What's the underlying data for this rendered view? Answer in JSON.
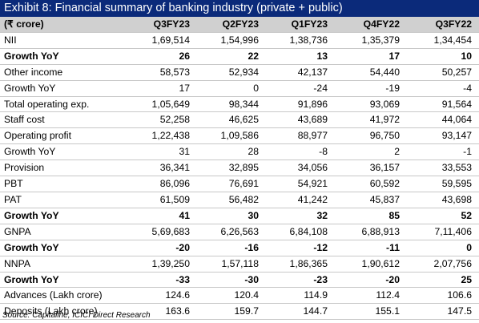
{
  "title": "Exhibit 8: Financial summary of banking industry (private + public)",
  "header": [
    "(₹ crore)",
    "Q3FY23",
    "Q2FY23",
    "Q1FY23",
    "Q4FY22",
    "Q3FY22"
  ],
  "rows": [
    {
      "label": "NII",
      "bold": false,
      "values": [
        "1,69,514",
        "1,54,996",
        "1,38,736",
        "1,35,379",
        "1,34,454"
      ]
    },
    {
      "label": "Growth YoY",
      "bold": true,
      "values": [
        "26",
        "22",
        "13",
        "17",
        "10"
      ]
    },
    {
      "label": "Other income",
      "bold": false,
      "values": [
        "58,573",
        "52,934",
        "42,137",
        "54,440",
        "50,257"
      ]
    },
    {
      "label": "Growth YoY",
      "bold": false,
      "values": [
        "17",
        "0",
        "-24",
        "-19",
        "-4"
      ]
    },
    {
      "label": "Total operating exp.",
      "bold": false,
      "values": [
        "1,05,649",
        "98,344",
        "91,896",
        "93,069",
        "91,564"
      ]
    },
    {
      "label": "Staff cost",
      "bold": false,
      "values": [
        "52,258",
        "46,625",
        "43,689",
        "41,972",
        "44,064"
      ]
    },
    {
      "label": "Operating profit",
      "bold": false,
      "values": [
        "1,22,438",
        "1,09,586",
        "88,977",
        "96,750",
        "93,147"
      ]
    },
    {
      "label": "Growth YoY",
      "bold": false,
      "values": [
        "31",
        "28",
        "-8",
        "2",
        "-1"
      ]
    },
    {
      "label": "Provision",
      "bold": false,
      "values": [
        "36,341",
        "32,895",
        "34,056",
        "36,157",
        "33,553"
      ]
    },
    {
      "label": "PBT",
      "bold": false,
      "values": [
        "86,096",
        "76,691",
        "54,921",
        "60,592",
        "59,595"
      ]
    },
    {
      "label": "PAT",
      "bold": false,
      "values": [
        "61,509",
        "56,482",
        "41,242",
        "45,837",
        "43,698"
      ]
    },
    {
      "label": "Growth YoY",
      "bold": true,
      "values": [
        "41",
        "30",
        "32",
        "85",
        "52"
      ]
    },
    {
      "label": "GNPA",
      "bold": false,
      "values": [
        "5,69,683",
        "6,26,563",
        "6,84,108",
        "6,88,913",
        "7,11,406"
      ]
    },
    {
      "label": "Growth YoY",
      "bold": true,
      "values": [
        "-20",
        "-16",
        "-12",
        "-11",
        "0"
      ]
    },
    {
      "label": "NNPA",
      "bold": false,
      "values": [
        "1,39,250",
        "1,57,118",
        "1,86,365",
        "1,90,612",
        "2,07,756"
      ]
    },
    {
      "label": "Growth YoY",
      "bold": true,
      "values": [
        "-33",
        "-30",
        "-23",
        "-20",
        "25"
      ]
    },
    {
      "label": "Advances (Lakh crore)",
      "bold": false,
      "values": [
        "124.6",
        "120.4",
        "114.9",
        "112.4",
        "106.6"
      ]
    },
    {
      "label": "Deposits (Lakh crore)",
      "bold": false,
      "values": [
        "163.6",
        "159.7",
        "144.7",
        "155.1",
        "147.5"
      ]
    }
  ],
  "source": "Source: Capitaline, ICICI Direct Research"
}
